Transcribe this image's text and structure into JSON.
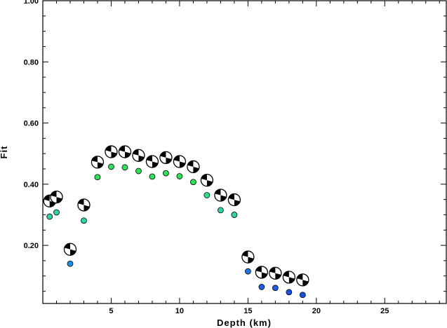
{
  "chart_data": {
    "type": "scatter",
    "xlabel": "Depth (km)",
    "ylabel": "Fit",
    "xlim": [
      0,
      29.5
    ],
    "ylim": [
      0.01,
      1.0
    ],
    "xticks": [
      5,
      10,
      15,
      20,
      25
    ],
    "yticks": [
      0.2,
      0.4,
      0.6,
      0.8,
      1.0
    ],
    "xtick_labels": [
      "5",
      "10",
      "15",
      "20",
      "25"
    ],
    "ytick_labels": [
      "0.20",
      "0.40",
      "0.60",
      "0.80",
      "1.00"
    ],
    "grid": false,
    "series": [
      {
        "marker": "mechanism",
        "points": [
          {
            "x": 0.5,
            "y": 0.345
          },
          {
            "x": 1,
            "y": 0.358
          },
          {
            "x": 2,
            "y": 0.187
          },
          {
            "x": 3,
            "y": 0.332
          },
          {
            "x": 4,
            "y": 0.472
          },
          {
            "x": 5,
            "y": 0.506
          },
          {
            "x": 6,
            "y": 0.506
          },
          {
            "x": 7,
            "y": 0.494
          },
          {
            "x": 8,
            "y": 0.474
          },
          {
            "x": 9,
            "y": 0.487
          },
          {
            "x": 10,
            "y": 0.474
          },
          {
            "x": 11,
            "y": 0.457
          },
          {
            "x": 12,
            "y": 0.413
          },
          {
            "x": 13,
            "y": 0.364
          },
          {
            "x": 14,
            "y": 0.349
          },
          {
            "x": 15,
            "y": 0.162
          },
          {
            "x": 16,
            "y": 0.112
          },
          {
            "x": 17,
            "y": 0.109
          },
          {
            "x": 18,
            "y": 0.096
          },
          {
            "x": 19,
            "y": 0.087
          }
        ]
      },
      {
        "marker": "dot",
        "points": [
          {
            "x": 0.5,
            "y": 0.294,
            "color": "#2ed3a6"
          },
          {
            "x": 1,
            "y": 0.308,
            "color": "#2ed3a6"
          },
          {
            "x": 2,
            "y": 0.14,
            "color": "#1f8fe3"
          },
          {
            "x": 3,
            "y": 0.281,
            "color": "#2ed3a6"
          },
          {
            "x": 4,
            "y": 0.423,
            "color": "#2ee05a"
          },
          {
            "x": 5,
            "y": 0.457,
            "color": "#2ee05a"
          },
          {
            "x": 6,
            "y": 0.455,
            "color": "#2ee05a"
          },
          {
            "x": 7,
            "y": 0.443,
            "color": "#2ee05a"
          },
          {
            "x": 8,
            "y": 0.425,
            "color": "#2ee05a"
          },
          {
            "x": 9,
            "y": 0.436,
            "color": "#2ee05a"
          },
          {
            "x": 10,
            "y": 0.426,
            "color": "#2ee05a"
          },
          {
            "x": 11,
            "y": 0.407,
            "color": "#2ee05a"
          },
          {
            "x": 12,
            "y": 0.364,
            "color": "#2ee08c"
          },
          {
            "x": 13,
            "y": 0.315,
            "color": "#2ed3a6"
          },
          {
            "x": 14,
            "y": 0.3,
            "color": "#2ed3a6"
          },
          {
            "x": 15,
            "y": 0.115,
            "color": "#1f78e3"
          },
          {
            "x": 16,
            "y": 0.064,
            "color": "#1a5fe0"
          },
          {
            "x": 17,
            "y": 0.061,
            "color": "#1a5fe0"
          },
          {
            "x": 18,
            "y": 0.047,
            "color": "#1a4fe0"
          },
          {
            "x": 19,
            "y": 0.038,
            "color": "#1a4fe0"
          }
        ]
      }
    ]
  }
}
